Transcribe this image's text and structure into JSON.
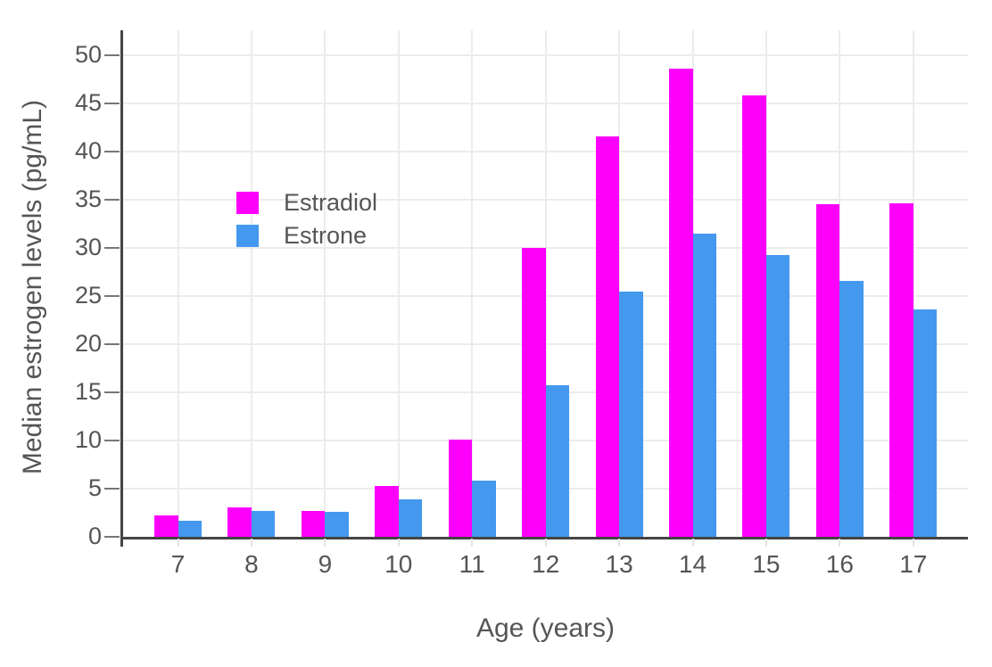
{
  "chart_data": {
    "type": "bar",
    "title": "",
    "xlabel": "Age (years)",
    "ylabel": "Median estrogen levels (pg/mL)",
    "categories": [
      "7",
      "8",
      "9",
      "10",
      "11",
      "12",
      "13",
      "14",
      "15",
      "16",
      "17"
    ],
    "series": [
      {
        "name": "Estradiol",
        "color": "#FC00FC",
        "values": [
          2.2,
          3.1,
          2.7,
          5.3,
          10.1,
          30.0,
          41.6,
          48.6,
          45.8,
          34.5,
          34.6
        ]
      },
      {
        "name": "Estrone",
        "color": "#4499EE",
        "values": [
          1.7,
          2.7,
          2.6,
          3.9,
          5.8,
          15.7,
          25.5,
          31.5,
          29.3,
          26.6,
          23.6
        ]
      }
    ],
    "ylim": [
      0,
      52.6
    ],
    "yticks": [
      0,
      5,
      10,
      15,
      20,
      25,
      30,
      35,
      40,
      45,
      50
    ],
    "grid": true,
    "legend_position": "inside-upper-left",
    "barmode": "group"
  },
  "colors": {
    "background": "#FFFFFF",
    "axis": "#444444",
    "grid": "#ECECEC",
    "y_tick_mark": "#777777",
    "x_tick_mark": "#E3E3E3",
    "text": "#555555"
  }
}
